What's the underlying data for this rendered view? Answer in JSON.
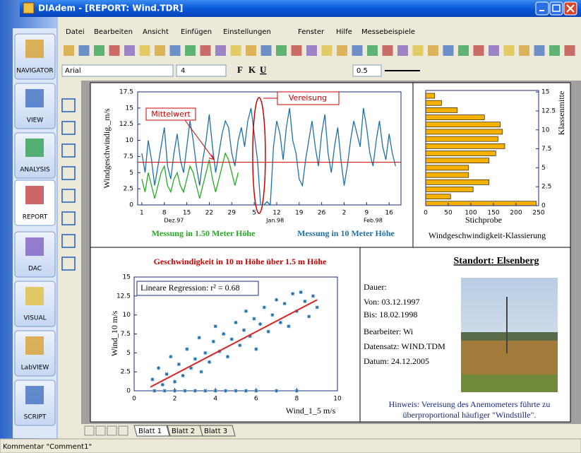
{
  "window": {
    "title": "DIAdem - [REPORT:  Wind.TDR]"
  },
  "menu": [
    "Datei",
    "Bearbeiten",
    "Ansicht",
    "Einfügen",
    "Einstellungen",
    "Fenster",
    "Hilfe",
    "Messebeispiele"
  ],
  "toolbar": {
    "font": "Arial",
    "font_size": 4,
    "format_buttons": [
      "F",
      "K",
      "U"
    ],
    "line_width": 0.5
  },
  "sidebar": [
    "NAVIGATOR",
    "VIEW",
    "ANALYSIS",
    "REPORT",
    "DAC",
    "VISUAL",
    "LabVIEW",
    "SCRIPT"
  ],
  "sheet_tabs": [
    "Blatt 1",
    "Blatt 2",
    "Blatt 3"
  ],
  "status_bar": "Kommentar \"Comment1\"",
  "chart_data": [
    {
      "type": "line",
      "ylabel": "Windgeschwindig._m/s",
      "xlim": [
        -1.3,
        80.7
      ],
      "xticks": [
        {
          "value": 0,
          "label": "1"
        },
        {
          "value": 7,
          "label": "8"
        },
        {
          "value": 14,
          "label": "15"
        },
        {
          "value": 21,
          "label": "22"
        },
        {
          "value": 28,
          "label": "29"
        },
        {
          "value": 35,
          "label": "5"
        },
        {
          "value": 42,
          "label": "12"
        },
        {
          "value": 49,
          "label": "19"
        },
        {
          "value": 56,
          "label": "26"
        },
        {
          "value": 63,
          "label": "2"
        },
        {
          "value": 70,
          "label": "9"
        },
        {
          "value": 77,
          "label": "16"
        }
      ],
      "month_labels": [
        {
          "value": 10,
          "label": "Dez.97"
        },
        {
          "value": 41.5,
          "label": "Jan.98"
        },
        {
          "value": 72,
          "label": "Feb.98"
        }
      ],
      "ylim": [
        0,
        17.5
      ],
      "yticks": [
        0,
        2.5,
        5,
        7.5,
        10,
        12.5,
        15,
        17.5
      ],
      "mean": {
        "label": "Mittelwert",
        "value": 6.6,
        "color": "#cc0000"
      },
      "icing": {
        "label": "Vereisung",
        "x": 36.5,
        "color": "#cc0000"
      },
      "series": [
        {
          "name": "Messung in 10 Meter Höhe",
          "color": "#1f6fa8",
          "x": [
            0,
            1,
            2,
            3,
            4,
            5,
            6,
            7,
            8,
            9,
            10,
            11,
            12,
            13,
            14,
            15,
            16,
            17,
            18,
            19,
            20,
            21,
            22,
            23,
            24,
            25,
            26,
            27,
            28,
            29,
            30,
            31,
            32,
            33,
            34,
            35,
            36,
            37,
            38,
            39,
            40,
            41,
            42,
            43,
            44,
            45,
            46,
            47,
            48,
            49,
            50,
            51,
            52,
            53,
            54,
            55,
            56,
            57,
            58,
            59,
            60,
            61,
            62,
            63,
            64,
            65,
            66,
            67,
            68,
            69,
            70,
            71,
            72,
            73,
            74,
            75,
            76,
            77,
            78,
            79
          ],
          "values": [
            8,
            5,
            10,
            7,
            3,
            6,
            9,
            12,
            6,
            4,
            8,
            11,
            7,
            5,
            9,
            13,
            10,
            6,
            3,
            7,
            10,
            14,
            9,
            5,
            8,
            11,
            13,
            12,
            8,
            6,
            10,
            12,
            9,
            13,
            15,
            11,
            7,
            0,
            0,
            0.5,
            0,
            9,
            13,
            11,
            7,
            12,
            15,
            10,
            8,
            4,
            3,
            7,
            10,
            13,
            9,
            6,
            11,
            14,
            8,
            5,
            9,
            12,
            7,
            3,
            6,
            10,
            13,
            11,
            9,
            15,
            12,
            8,
            6,
            10,
            13,
            9,
            7,
            11,
            8,
            6
          ]
        },
        {
          "name": "Messung in 1.50 Meter Höhe",
          "color": "#22aa22",
          "x": [
            0,
            1,
            2,
            3,
            4,
            5,
            6,
            7,
            8,
            9,
            10,
            11,
            12,
            13,
            14,
            15,
            16,
            17,
            18,
            19,
            20,
            21,
            22,
            23,
            24,
            25,
            26,
            27,
            28,
            29,
            30
          ],
          "values": [
            4,
            2,
            5,
            3,
            1,
            3,
            5,
            6,
            3,
            2,
            4,
            5,
            3,
            2,
            4,
            6,
            5,
            3,
            1,
            3,
            5,
            7,
            4,
            2,
            4,
            6,
            8,
            7,
            5,
            3,
            5
          ]
        }
      ]
    },
    {
      "type": "hbar",
      "xlabel": "Stichprobe",
      "title": "Windgeschwindigkeit-Klassierung",
      "ylabel": "Klassenmitte",
      "color": "#f5b000",
      "y": [
        0.25,
        1.2,
        2.15,
        3.1,
        4.05,
        5,
        5.95,
        6.9,
        7.85,
        8.8,
        9.75,
        10.7,
        11.65,
        12.6,
        13.55,
        14.5
      ],
      "values": [
        245,
        55,
        105,
        140,
        95,
        95,
        140,
        155,
        175,
        160,
        170,
        165,
        130,
        70,
        35,
        20
      ],
      "xlim": [
        0,
        250
      ],
      "xticks": [
        0,
        50,
        100,
        150,
        200,
        250
      ],
      "ylim": [
        0,
        15.2
      ],
      "yticks": [
        0,
        2.5,
        5,
        7.5,
        10,
        12.5,
        15
      ]
    },
    {
      "type": "scatter",
      "title": "Geschwindigkeit in 10 m Höhe über 1.5 m Höhe",
      "xlabel": "Wind_1_5 m/s",
      "ylabel": "Wind_10 m/s",
      "annotation": "Lineare Regression: r² = 0.68",
      "color": "#1f6fa8",
      "xlim": [
        0,
        10
      ],
      "xticks": [
        0,
        2,
        4,
        6,
        8,
        10
      ],
      "ylim": [
        0,
        15
      ],
      "yticks": [
        0,
        2.5,
        5,
        7.5,
        10,
        12.5,
        15
      ],
      "x": [
        1,
        1.5,
        2,
        2.5,
        3,
        3.5,
        4,
        4.5,
        5,
        5.5,
        6,
        7,
        8,
        0.9,
        1.2,
        1.4,
        1.6,
        1.8,
        2,
        2.2,
        2.4,
        2.6,
        2.8,
        3,
        3.2,
        3.3,
        3.5,
        3.7,
        3.9,
        4,
        4.2,
        4.4,
        4.6,
        4.8,
        5,
        5.2,
        5.4,
        5.5,
        5.7,
        5.9,
        6,
        6.2,
        6.4,
        6.6,
        6.8,
        7,
        7.2,
        7.4,
        7.6,
        7.8,
        8,
        8.2,
        8.4,
        8.6,
        8.8,
        9
      ],
      "values": [
        0,
        0,
        0,
        0,
        0,
        0,
        0,
        0,
        0,
        0,
        0,
        0,
        0,
        1.5,
        3,
        0.8,
        2.2,
        4.5,
        1.2,
        3.5,
        2,
        5.5,
        3,
        4.2,
        7,
        2.5,
        5,
        3.8,
        6.5,
        8.5,
        5.2,
        7.5,
        4.5,
        6.8,
        9,
        6,
        8,
        10.5,
        7.2,
        9.5,
        5.5,
        8.8,
        11,
        7.8,
        10,
        12,
        9,
        11.5,
        8.5,
        12.8,
        10.5,
        13,
        11.8,
        9.8,
        12.5,
        11
      ],
      "regression": {
        "x": [
          0.8,
          9
        ],
        "values": [
          0.5,
          12
        ],
        "color": "#dd2222"
      }
    }
  ],
  "info_panel": {
    "title": "Standort: Elsenberg",
    "lines": [
      "Dauer:",
      "Von: 03.12.1997",
      "Bis: 18.02.1998",
      "Bearbeiter: Wi",
      "Datensatz: WIND.TDM",
      "Datum: 24.12.2005"
    ],
    "note": [
      "Hinweis: Vereisung des Anemometers führte zu",
      "überproportional häufiger \"Windstille\"."
    ]
  }
}
